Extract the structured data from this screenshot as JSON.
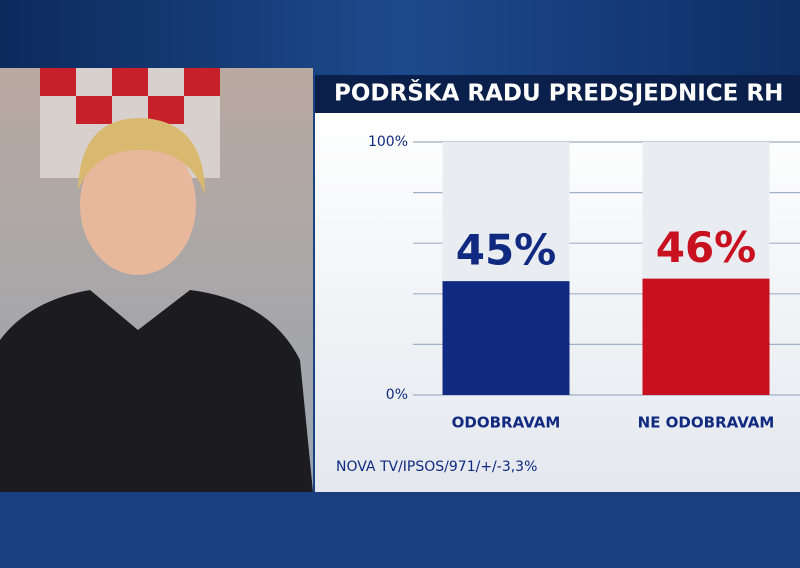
{
  "chart_data": {
    "type": "bar",
    "title": "PODRŠKA RADU PREDSJEDNICE RH",
    "categories": [
      "ODOBRAVAM",
      "NE ODOBRAVAM"
    ],
    "values": [
      45,
      46
    ],
    "value_labels": [
      "45%",
      "46%"
    ],
    "colors": [
      "#0f2a80",
      "#c8101e"
    ],
    "ylim": [
      0,
      100
    ],
    "yticks": [
      {
        "value": 0,
        "label": "0%"
      },
      {
        "value": 100,
        "label": "100%"
      }
    ],
    "gridlines": [
      0,
      20,
      40,
      60,
      80,
      100
    ],
    "source": "NOVA TV/IPSOS/971/+/-3,3%"
  }
}
